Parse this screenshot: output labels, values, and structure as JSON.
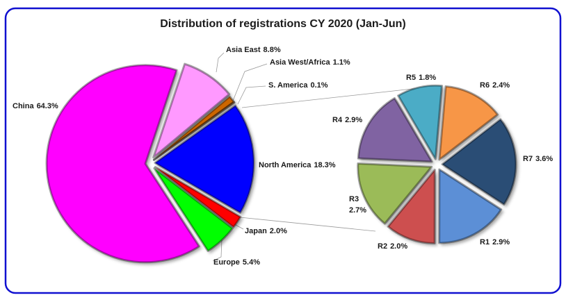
{
  "chart_data": [
    {
      "type": "pie",
      "title": "Distribution of registrations CY 2020 (Jan-Jun)",
      "categories": [
        "China",
        "Asia East",
        "Asia West/Africa",
        "S. America",
        "North America",
        "Japan",
        "Europe"
      ],
      "values": [
        64.3,
        8.8,
        1.1,
        0.1,
        18.3,
        2.0,
        5.4
      ],
      "value_labels": [
        "64.3%",
        "8.8%",
        "1.1%",
        "0.1%",
        "18.3%",
        "2.0%",
        "5.4%"
      ],
      "colors": [
        "#ff00ff",
        "#ff99ff",
        "#cc6600",
        "#996633",
        "#0000ff",
        "#ff0000",
        "#00ff00"
      ]
    },
    {
      "type": "pie",
      "categories": [
        "R6",
        "R7",
        "R1",
        "R2",
        "R3",
        "R4",
        "R5"
      ],
      "values": [
        2.4,
        3.6,
        2.9,
        2.0,
        2.7,
        2.9,
        1.8
      ],
      "value_labels": [
        "2.4%",
        "3.6%",
        "2.9%",
        "2.0%",
        "2.7%",
        "2.9%",
        "1.8%"
      ],
      "colors": [
        "#f79646",
        "#2c4d75",
        "#5b8fd6",
        "#cd5050",
        "#9bbb59",
        "#8064a2",
        "#4bacc6"
      ]
    }
  ]
}
